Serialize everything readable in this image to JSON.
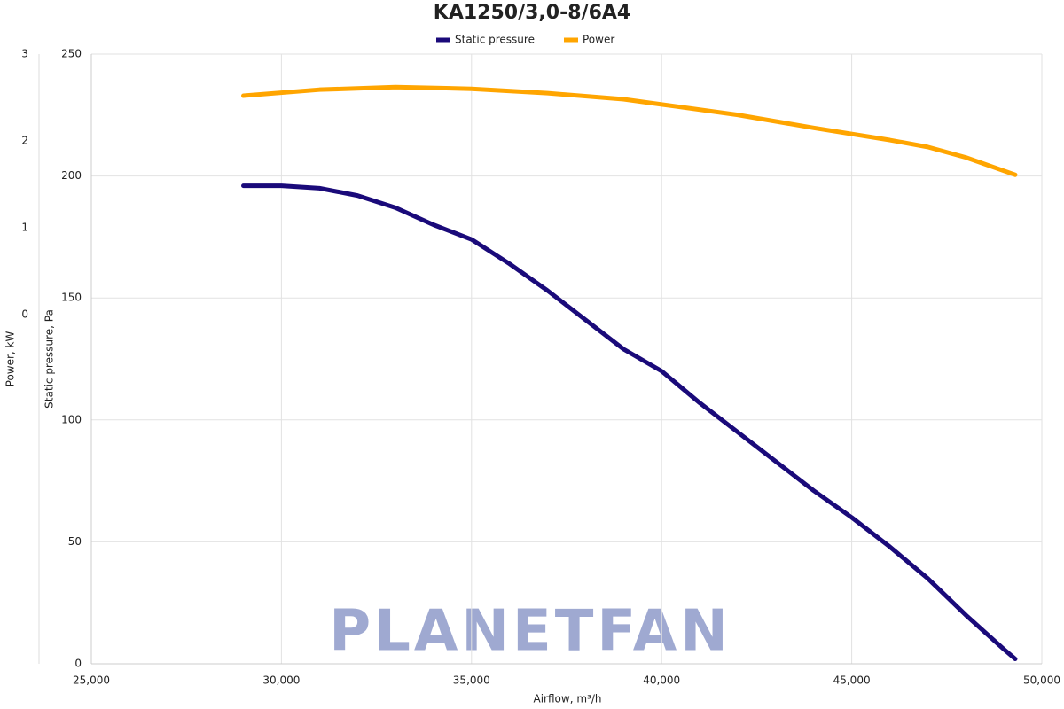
{
  "chart_data": {
    "type": "line",
    "title": "KA1250/3,0-8/6A4",
    "xlabel": "Airflow, m³/h",
    "ylabel": "Static pressure, Pa",
    "y2label": "Power, kW",
    "watermark": "PLANETFAN",
    "xlim": [
      25000,
      50000
    ],
    "xticks": [
      {
        "value": 25000,
        "label": "25,000"
      },
      {
        "value": 30000,
        "label": "30,000"
      },
      {
        "value": 35000,
        "label": "35,000"
      },
      {
        "value": 40000,
        "label": "40,000"
      },
      {
        "value": 45000,
        "label": "45,000"
      },
      {
        "value": 50000,
        "label": "50,000"
      }
    ],
    "ylim": [
      0,
      250
    ],
    "yticks": [
      0,
      50,
      100,
      150,
      200,
      250
    ],
    "y2lim": [
      -4.02,
      3
    ],
    "y2ticks": [
      0,
      1,
      2,
      3
    ],
    "grid": true,
    "legend": "top",
    "series": [
      {
        "name": "Static pressure",
        "color": "#1a0a7a",
        "x": [
          29000,
          30000,
          31000,
          32000,
          33000,
          34000,
          35000,
          36000,
          37000,
          38000,
          39000,
          40000,
          41000,
          42000,
          43000,
          44000,
          45000,
          46000,
          47000,
          48000,
          49000,
          49300
        ],
        "values": [
          196,
          196,
          195,
          192,
          187,
          180,
          174,
          164,
          153,
          141,
          129,
          120,
          107,
          95,
          83,
          71,
          60,
          48,
          35,
          20,
          6,
          2
        ]
      },
      {
        "name": "Power",
        "color": "#ffa500",
        "axis": "y2",
        "x": [
          29000,
          31000,
          33000,
          35000,
          37000,
          39000,
          40000,
          42000,
          44000,
          46000,
          47000,
          48000,
          49300
        ],
        "values": [
          2.52,
          2.59,
          2.62,
          2.6,
          2.55,
          2.48,
          2.42,
          2.3,
          2.15,
          2.01,
          1.93,
          1.81,
          1.61
        ]
      }
    ]
  }
}
